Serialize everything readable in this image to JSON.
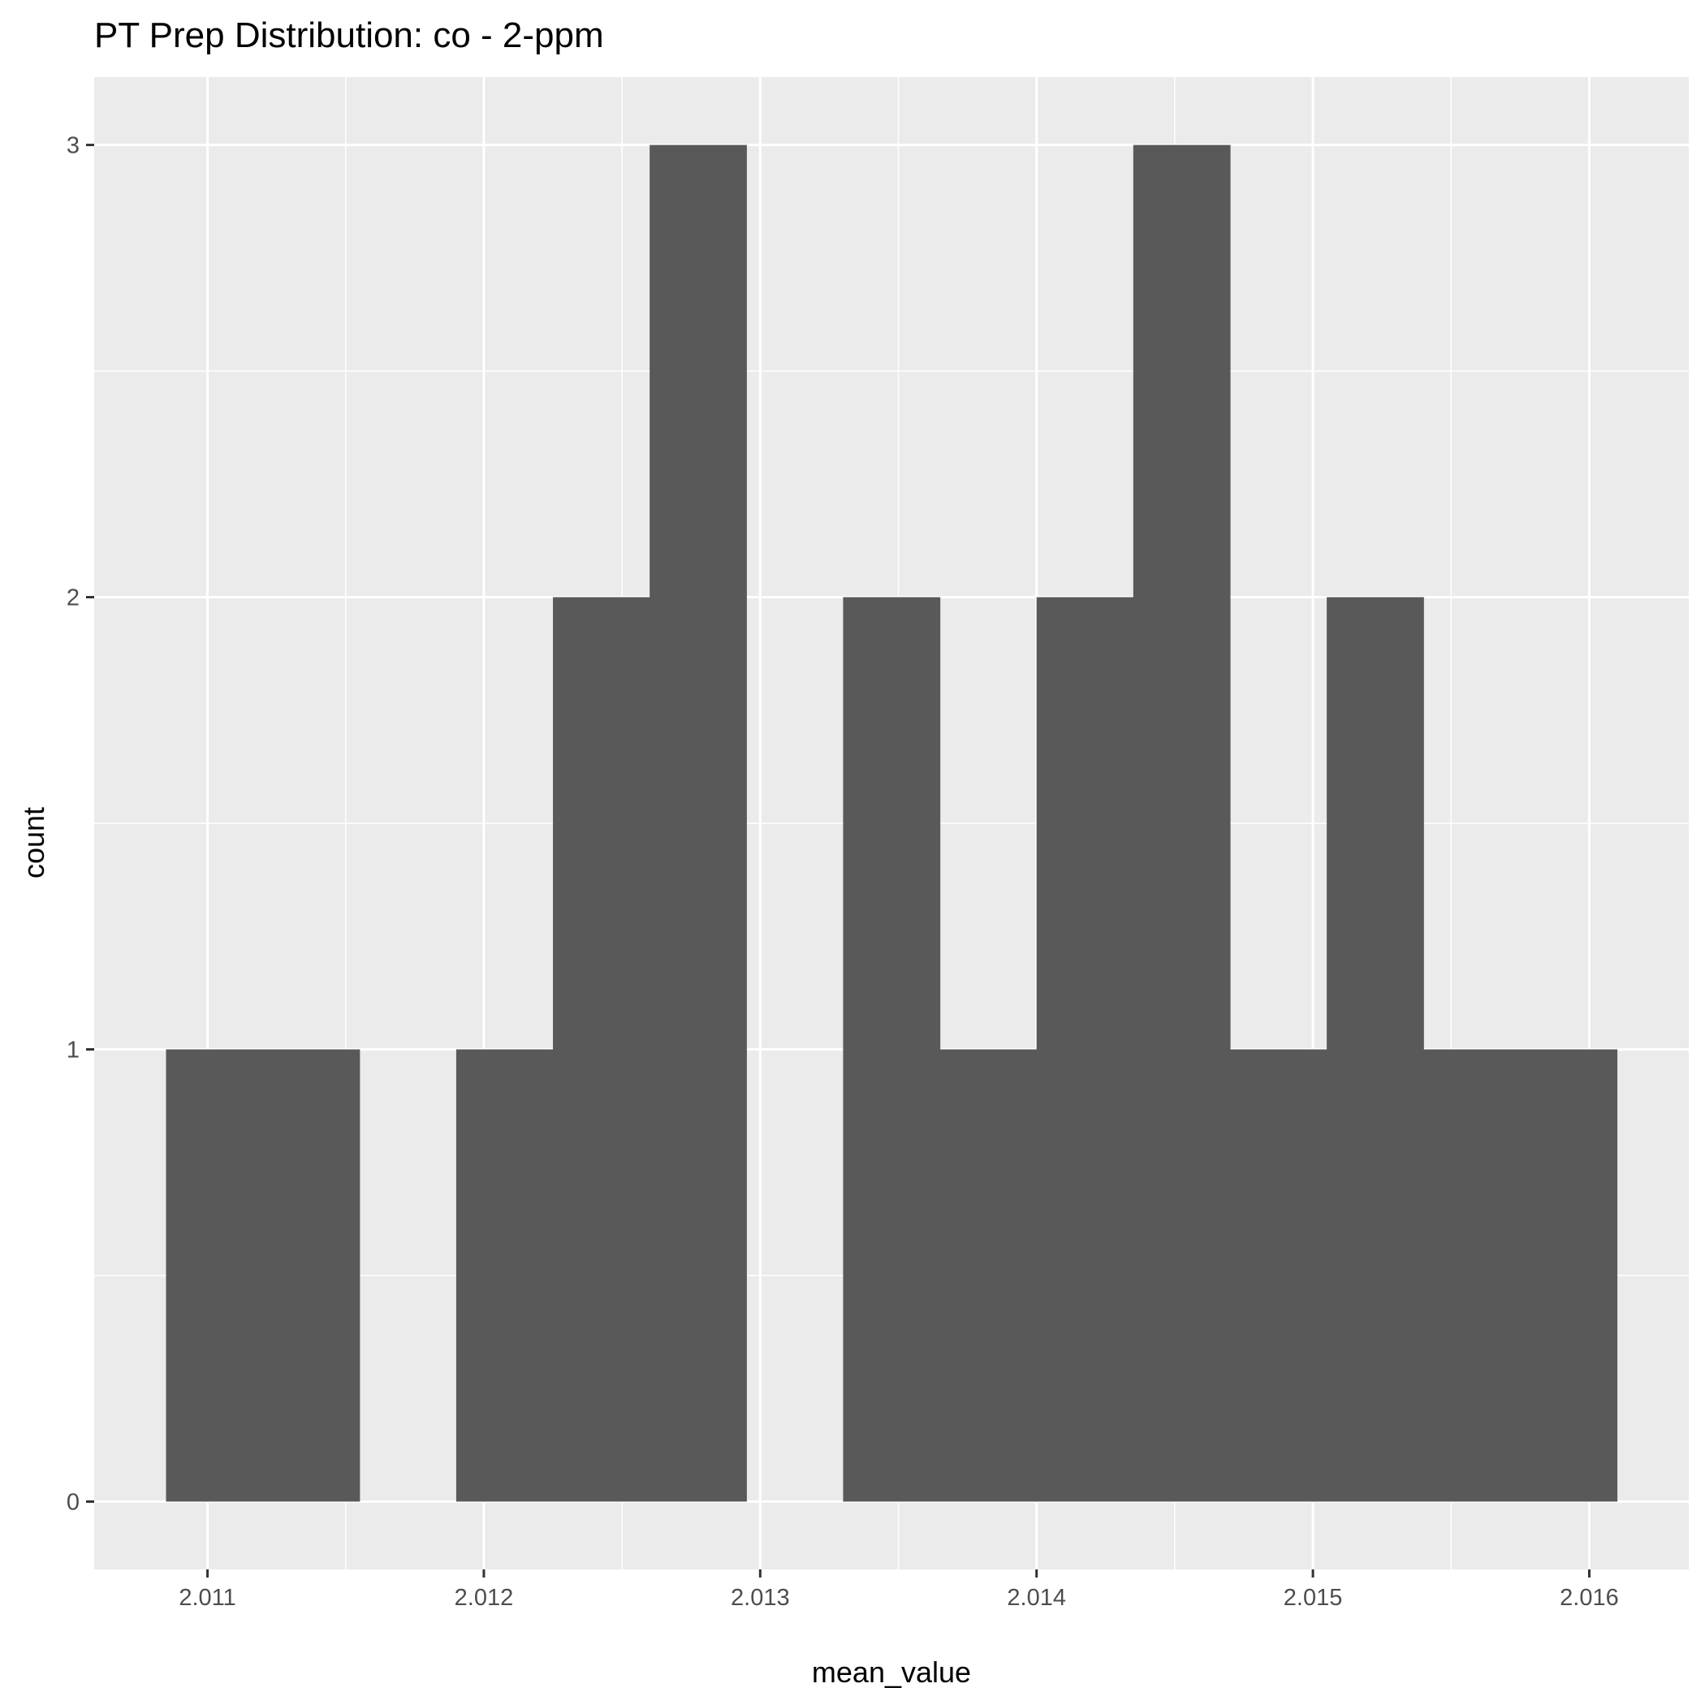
{
  "chart_data": {
    "type": "histogram",
    "title": "PT Prep Distribution: co - 2-ppm",
    "xlabel": "mean_value",
    "ylabel": "count",
    "xlim": [
      2.01059,
      2.01636
    ],
    "ylim": [
      -0.15,
      3.15
    ],
    "x_ticks": [
      2.011,
      2.012,
      2.013,
      2.014,
      2.015,
      2.016
    ],
    "x_tick_labels": [
      "2.011",
      "2.012",
      "2.013",
      "2.014",
      "2.015",
      "2.016"
    ],
    "y_ticks": [
      0,
      1,
      2,
      3
    ],
    "y_tick_labels": [
      "0",
      "1",
      "2",
      "3"
    ],
    "bin_width": 0.00035,
    "bins": [
      {
        "x0": 2.01085,
        "x1": 2.0112,
        "count": 1
      },
      {
        "x0": 2.0112,
        "x1": 2.01155,
        "count": 1
      },
      {
        "x0": 2.0119,
        "x1": 2.01225,
        "count": 1
      },
      {
        "x0": 2.01225,
        "x1": 2.0126,
        "count": 2
      },
      {
        "x0": 2.0126,
        "x1": 2.01295,
        "count": 3
      },
      {
        "x0": 2.0133,
        "x1": 2.01365,
        "count": 2
      },
      {
        "x0": 2.01365,
        "x1": 2.014,
        "count": 1
      },
      {
        "x0": 2.014,
        "x1": 2.01435,
        "count": 2
      },
      {
        "x0": 2.01435,
        "x1": 2.0147,
        "count": 3
      },
      {
        "x0": 2.0147,
        "x1": 2.01505,
        "count": 1
      },
      {
        "x0": 2.01505,
        "x1": 2.0154,
        "count": 2
      },
      {
        "x0": 2.0154,
        "x1": 2.01575,
        "count": 1
      },
      {
        "x0": 2.01575,
        "x1": 2.0161,
        "count": 1
      }
    ],
    "grid": true,
    "colors": {
      "panel": "#ebebeb",
      "grid": "#ffffff",
      "bar": "#595959",
      "tick_text": "#4d4d4d",
      "tick": "#333333"
    }
  }
}
